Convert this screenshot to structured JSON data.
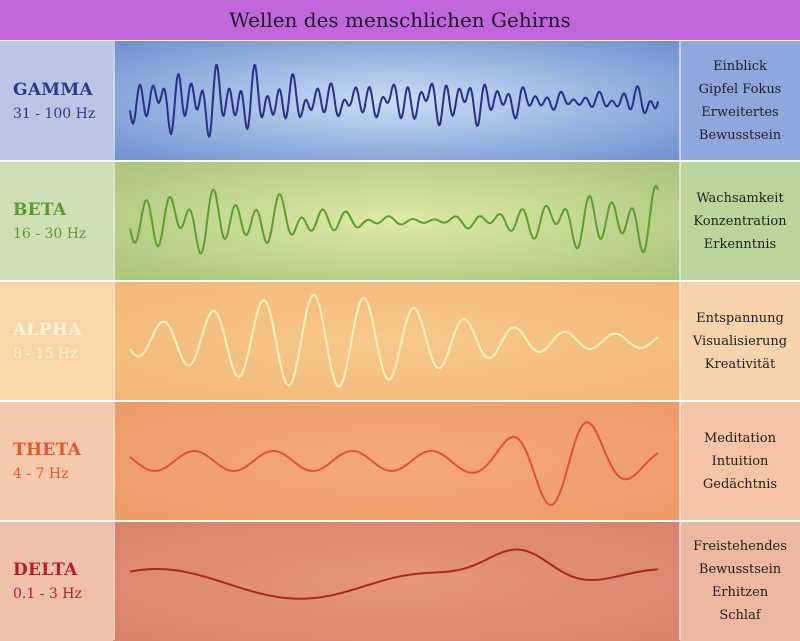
{
  "title": "Wellen des menschlichen Gehirns",
  "bands": [
    {
      "name": "GAMMA",
      "freq": "31 - 100 Hz",
      "desc": [
        "Einblick",
        "Gipfel Fokus",
        "Erweitertes",
        "Bewusstsein"
      ],
      "name_color": "#2b3a8c",
      "freq_color": "#2b3a8c",
      "wave_color": "#2c2f8a",
      "label_bg": "#b9c6e4",
      "center_bg": "#c9def3",
      "edge_bg": "#6f8fd0",
      "desc_bg": "#8fa7dc",
      "wave_type": "gamma"
    },
    {
      "name": "BETA",
      "freq": "16 - 30 Hz",
      "desc": [
        "Wachsamkeit",
        "Konzentration",
        "Erkenntnis"
      ],
      "name_color": "#5a9a2a",
      "freq_color": "#5a9a2a",
      "wave_color": "#5aa02c",
      "label_bg": "#cfe0b6",
      "center_bg": "#dfe9a6",
      "edge_bg": "#a6c47c",
      "desc_bg": "#bad59a",
      "wave_type": "beta"
    },
    {
      "name": "ALPHA",
      "freq": "8 - 15 Hz",
      "desc": [
        "Entspannung",
        "Visualisierung",
        "Kreativität"
      ],
      "name_color": "#fdf3d8",
      "freq_color": "#fdf3d8",
      "wave_color": "#fbf3bf",
      "label_bg": "#f8d6a8",
      "center_bg": "#f7c98a",
      "edge_bg": "#f2b677",
      "desc_bg": "#f6d3aa",
      "wave_type": "alpha"
    },
    {
      "name": "THETA",
      "freq": "4 - 7 Hz",
      "desc": [
        "Meditation",
        "Intuition",
        "Gedächtnis"
      ],
      "name_color": "#e8542c",
      "freq_color": "#e8542c",
      "wave_color": "#e2512a",
      "label_bg": "#f5c9ab",
      "center_bg": "#f5a977",
      "edge_bg": "#ee9a69",
      "desc_bg": "#f4c4a4",
      "wave_type": "theta"
    },
    {
      "name": "DELTA",
      "freq": "0.1 - 3 Hz",
      "desc": [
        "Freistehendes",
        "Bewusstsein",
        "Erhitzen",
        "Schlaf"
      ],
      "name_color": "#b3221f",
      "freq_color": "#b3221f",
      "wave_color": "#a9271c",
      "label_bg": "#efc1ad",
      "center_bg": "#e6957b",
      "edge_bg": "#d9826a",
      "desc_bg": "#eeb7a0",
      "wave_type": "delta"
    }
  ]
}
